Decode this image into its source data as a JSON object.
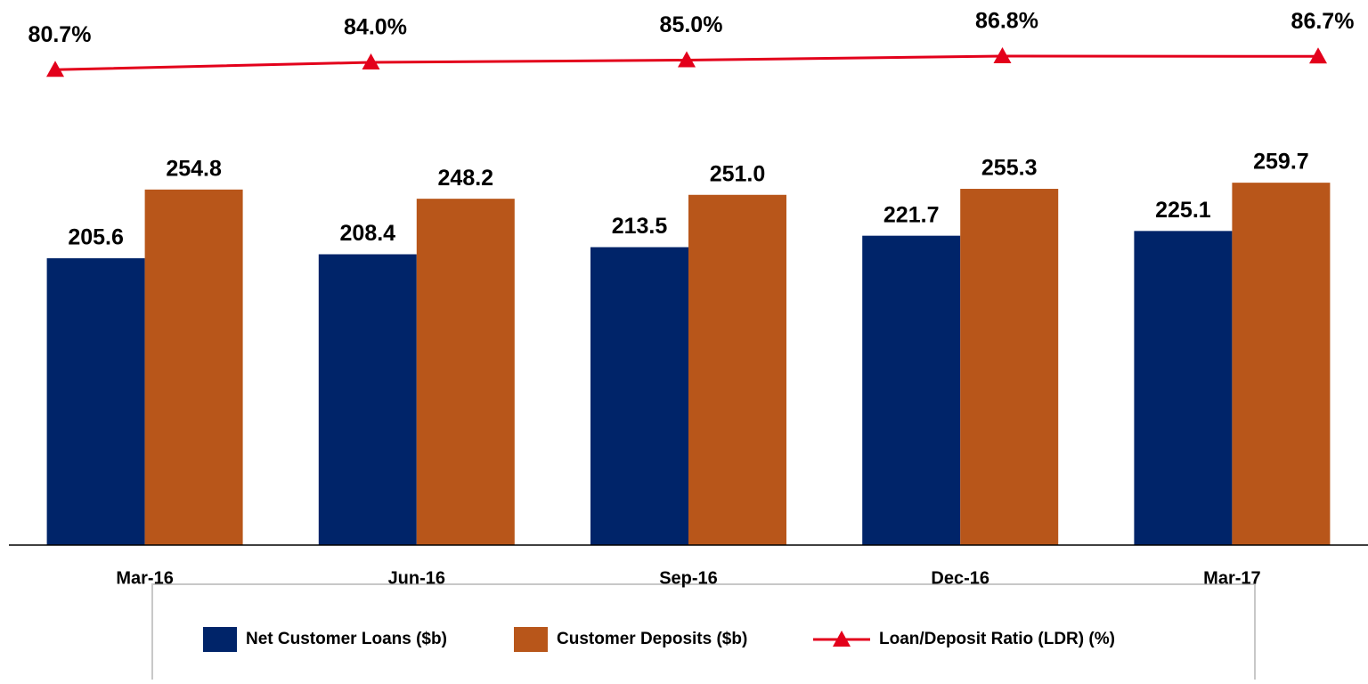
{
  "chart_data": {
    "type": "bar",
    "categories": [
      "Mar-16",
      "Jun-16",
      "Sep-16",
      "Dec-16",
      "Mar-17"
    ],
    "ylim": [
      0,
      300
    ],
    "y2lim": [
      60,
      100
    ],
    "series": [
      {
        "name": "Net Customer Loans ($b)",
        "color": "#002469",
        "type": "bar",
        "values": [
          205.6,
          208.4,
          213.5,
          221.7,
          225.1
        ],
        "value_labels": [
          "205.6",
          "208.4",
          "213.5",
          "221.7",
          "225.1"
        ]
      },
      {
        "name": "Customer Deposits ($b)",
        "color": "#b8561a",
        "type": "bar",
        "values": [
          254.8,
          248.2,
          251.0,
          255.3,
          259.7
        ],
        "value_labels": [
          "254.8",
          "248.2",
          "251.0",
          "255.3",
          "259.7"
        ]
      },
      {
        "name": "Loan/Deposit Ratio (LDR) (%)",
        "color": "#e3001b",
        "type": "line",
        "axis": "y2",
        "values": [
          80.7,
          84.0,
          85.0,
          86.8,
          86.7
        ],
        "value_labels": [
          "80.7%",
          "84.0%",
          "85.0%",
          "86.8%",
          "86.7%"
        ]
      }
    ]
  }
}
